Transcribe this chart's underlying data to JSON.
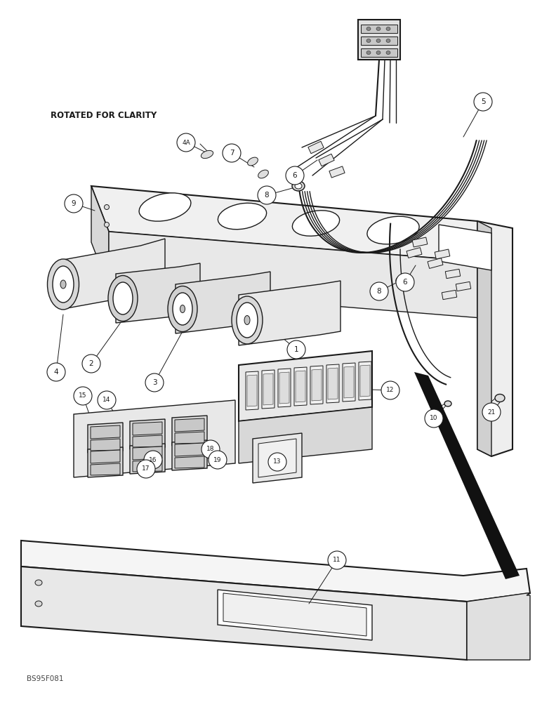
{
  "bg_color": "#ffffff",
  "lc": "#1a1a1a",
  "figure_size": [
    7.72,
    10.0
  ],
  "dpi": 100,
  "watermark": "BS95F081",
  "note_text": "ROTATED FOR CLARITY"
}
